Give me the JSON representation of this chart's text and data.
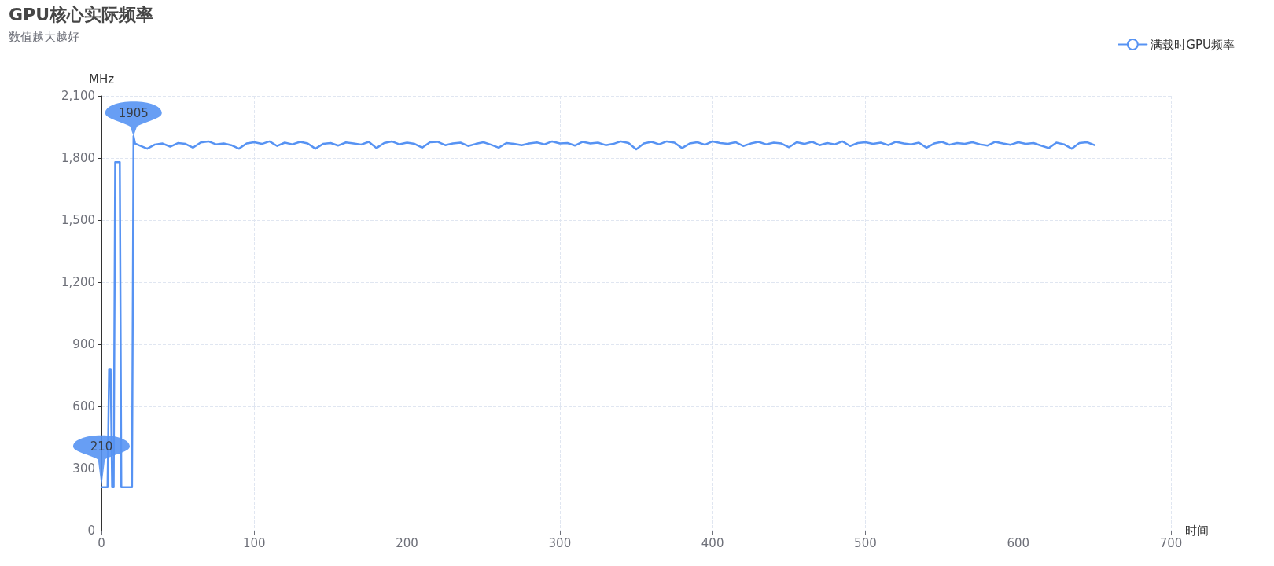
{
  "chart_data": {
    "type": "line",
    "title": "GPU核心实际频率",
    "subtitle": "数值越大越好",
    "xlabel": "时间",
    "ylabel": "MHz",
    "x": [
      0,
      4,
      5,
      6,
      7,
      8,
      9,
      12,
      13,
      20,
      21,
      22,
      25,
      30,
      35,
      40,
      45,
      50,
      55,
      60,
      65,
      70,
      75,
      80,
      85,
      90,
      95,
      100,
      105,
      110,
      115,
      120,
      125,
      130,
      135,
      140,
      145,
      150,
      155,
      160,
      165,
      170,
      175,
      180,
      185,
      190,
      195,
      200,
      205,
      210,
      215,
      220,
      225,
      230,
      235,
      240,
      245,
      250,
      255,
      260,
      265,
      270,
      275,
      280,
      285,
      290,
      295,
      300,
      305,
      310,
      315,
      320,
      325,
      330,
      335,
      340,
      345,
      350,
      355,
      360,
      365,
      370,
      375,
      380,
      385,
      390,
      395,
      400,
      405,
      410,
      415,
      420,
      425,
      430,
      435,
      440,
      445,
      450,
      455,
      460,
      465,
      470,
      475,
      480,
      485,
      490,
      495,
      500,
      505,
      510,
      515,
      520,
      525,
      530,
      535,
      540,
      545,
      550,
      555,
      560,
      565,
      570,
      575,
      580,
      585,
      590,
      595,
      600,
      605,
      610,
      615,
      620,
      625,
      630,
      635,
      640,
      645,
      650
    ],
    "series": [
      {
        "name": "满载时GPU频率",
        "color": "#5793f3",
        "values": [
          210,
          210,
          780,
          780,
          210,
          210,
          1780,
          1780,
          210,
          210,
          1905,
          1870,
          1860,
          1845,
          1865,
          1870,
          1855,
          1872,
          1868,
          1850,
          1875,
          1880,
          1866,
          1870,
          1862,
          1845,
          1870,
          1876,
          1868,
          1880,
          1858,
          1874,
          1866,
          1878,
          1870,
          1845,
          1868,
          1872,
          1860,
          1875,
          1870,
          1865,
          1878,
          1848,
          1872,
          1880,
          1866,
          1874,
          1868,
          1850,
          1876,
          1878,
          1862,
          1870,
          1874,
          1858,
          1868,
          1876,
          1864,
          1850,
          1872,
          1868,
          1862,
          1870,
          1875,
          1866,
          1880,
          1870,
          1872,
          1860,
          1878,
          1870,
          1874,
          1862,
          1868,
          1880,
          1872,
          1842,
          1870,
          1878,
          1866,
          1880,
          1874,
          1848,
          1870,
          1876,
          1864,
          1880,
          1872,
          1868,
          1876,
          1858,
          1870,
          1878,
          1866,
          1874,
          1870,
          1852,
          1876,
          1868,
          1878,
          1862,
          1872,
          1866,
          1880,
          1858,
          1872,
          1876,
          1868,
          1874,
          1862,
          1878,
          1870,
          1866,
          1874,
          1850,
          1870,
          1878,
          1864,
          1872,
          1868,
          1876,
          1866,
          1860,
          1878,
          1870,
          1864,
          1876,
          1868,
          1872,
          1860,
          1848,
          1874,
          1866,
          1845,
          1872,
          1876,
          1862
        ]
      }
    ],
    "xlim": [
      0,
      700
    ],
    "xticks": [
      0,
      100,
      200,
      300,
      400,
      500,
      600,
      700
    ],
    "ylim": [
      0,
      2100
    ],
    "yticks": [
      0,
      300,
      600,
      900,
      {
        "value": 1200,
        "label": "1,200"
      },
      {
        "value": 1500,
        "label": "1,500"
      },
      {
        "value": 1800,
        "label": "1,800"
      },
      {
        "value": 2100,
        "label": "2,100"
      }
    ],
    "annotations": [
      {
        "text": "1905",
        "x": 21,
        "y": 1905
      },
      {
        "text": "210",
        "x": 0,
        "y": 210
      }
    ],
    "grid": true,
    "legend": "top right"
  }
}
